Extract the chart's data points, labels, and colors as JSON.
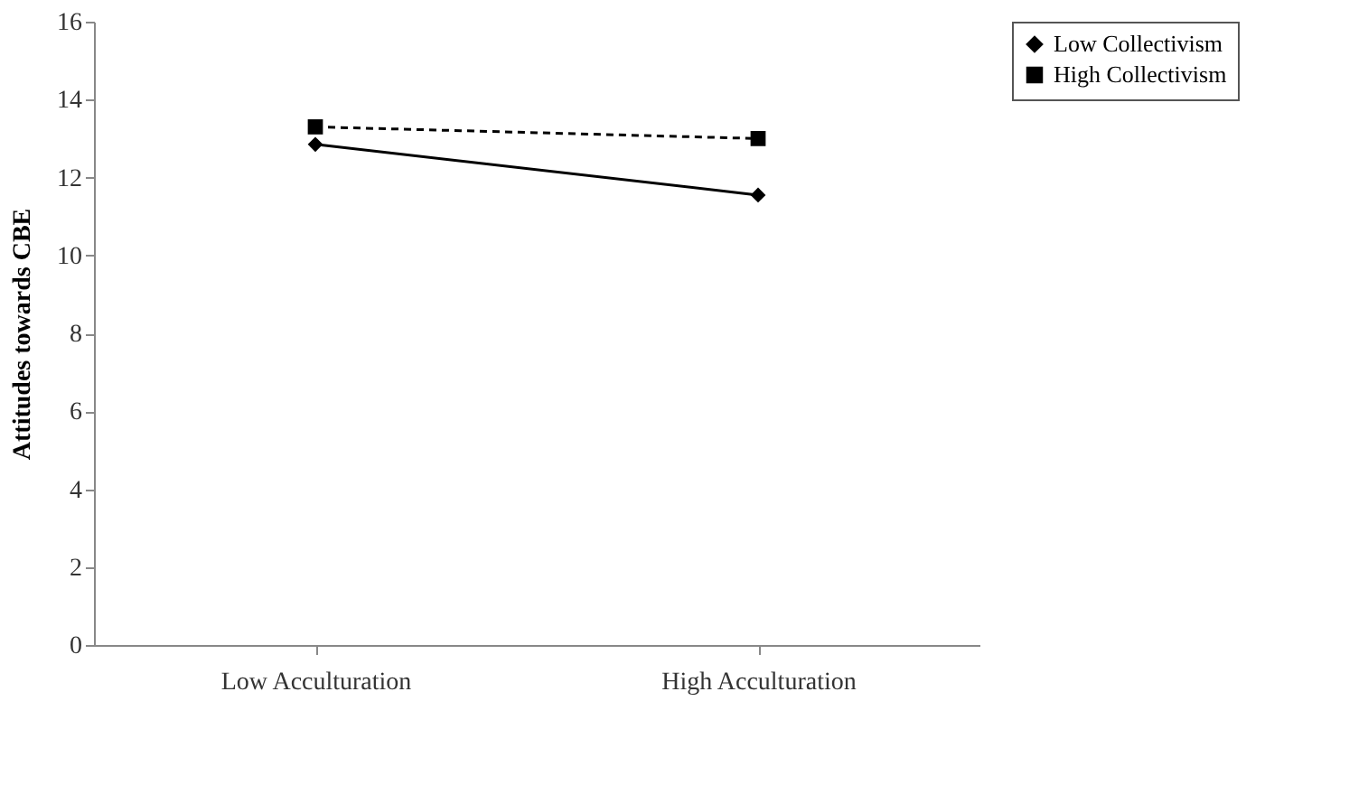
{
  "chart_data": {
    "type": "line",
    "ylabel": "Attitudes towards CBE",
    "categories": [
      "Low Acculturation",
      "High Acculturation"
    ],
    "series": [
      {
        "name": "Low Collectivism",
        "color": "#000000",
        "values": [
          12.85,
          11.55
        ],
        "marker": "diamond",
        "line_style": "solid"
      },
      {
        "name": "High Collectivism",
        "color": "#000000",
        "values": [
          13.3,
          13.0
        ],
        "marker": "square",
        "line_style": "dashed"
      }
    ],
    "ylim": [
      0,
      16
    ],
    "yticks": [
      0,
      2,
      4,
      6,
      8,
      10,
      12,
      14,
      16
    ],
    "grid": false,
    "legend": "right"
  }
}
